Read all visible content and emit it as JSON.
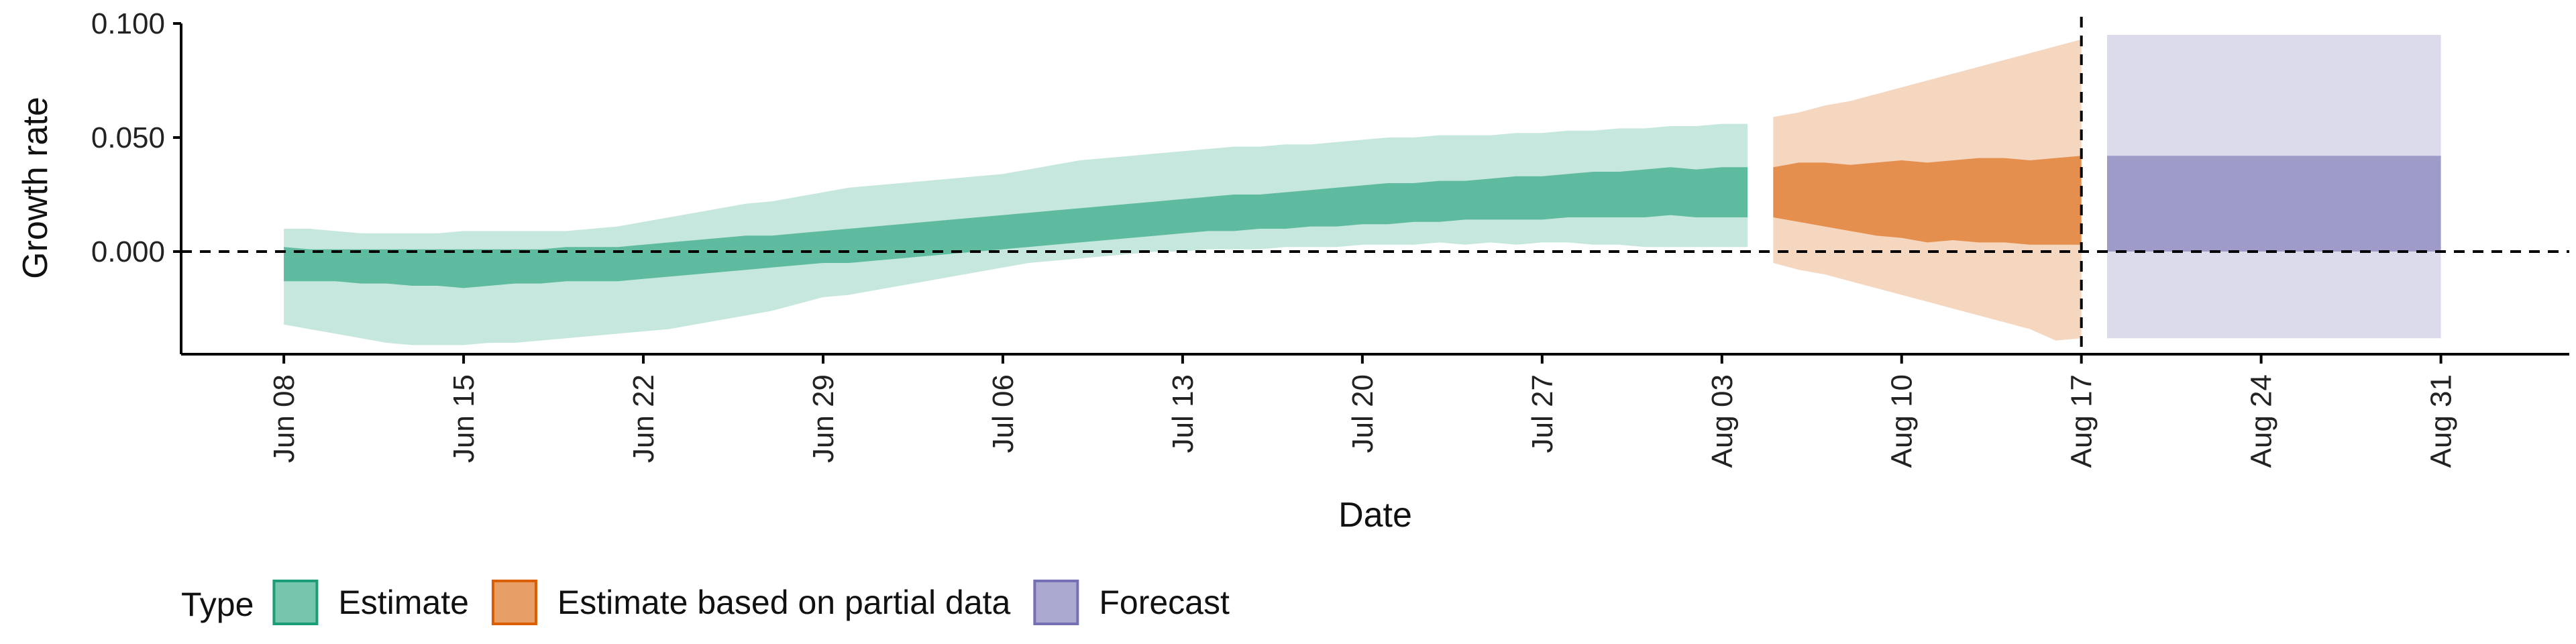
{
  "chart_data": {
    "type": "area",
    "xlabel": "Date",
    "ylabel": "Growth rate",
    "ylim": [
      -0.045,
      0.1
    ],
    "y_ticks": [
      "0.000",
      "0.050",
      "0.100"
    ],
    "y_tick_values": [
      0.0,
      0.05,
      0.1
    ],
    "x_ticks": [
      "Jun 08",
      "Jun 15",
      "Jun 22",
      "Jun 29",
      "Jul 06",
      "Jul 13",
      "Jul 20",
      "Jul 27",
      "Aug 03",
      "Aug 10",
      "Aug 17",
      "Aug 24",
      "Aug 31"
    ],
    "x_tick_dates": [
      "2020-06-08",
      "2020-06-15",
      "2020-06-22",
      "2020-06-29",
      "2020-07-06",
      "2020-07-13",
      "2020-07-20",
      "2020-07-27",
      "2020-08-03",
      "2020-08-10",
      "2020-08-17",
      "2020-08-24",
      "2020-08-31"
    ],
    "xlim": [
      "2020-06-04",
      "2020-09-05"
    ],
    "hline": 0,
    "vline": "2020-08-17",
    "grid": false,
    "legend": {
      "title": "Type",
      "position": "bottom-left",
      "entries": [
        {
          "label": "Estimate",
          "color": "#1b9e77"
        },
        {
          "label": "Estimate based on partial data",
          "color": "#d95f02"
        },
        {
          "label": "Forecast",
          "color": "#7570b3"
        }
      ]
    },
    "series": [
      {
        "name": "Estimate",
        "color": "#1b9e77",
        "x": [
          "2020-06-08",
          "2020-06-09",
          "2020-06-10",
          "2020-06-11",
          "2020-06-12",
          "2020-06-13",
          "2020-06-14",
          "2020-06-15",
          "2020-06-16",
          "2020-06-17",
          "2020-06-18",
          "2020-06-19",
          "2020-06-20",
          "2020-06-21",
          "2020-06-22",
          "2020-06-23",
          "2020-06-24",
          "2020-06-25",
          "2020-06-26",
          "2020-06-27",
          "2020-06-28",
          "2020-06-29",
          "2020-06-30",
          "2020-07-01",
          "2020-07-02",
          "2020-07-03",
          "2020-07-04",
          "2020-07-05",
          "2020-07-06",
          "2020-07-07",
          "2020-07-08",
          "2020-07-09",
          "2020-07-10",
          "2020-07-11",
          "2020-07-12",
          "2020-07-13",
          "2020-07-14",
          "2020-07-15",
          "2020-07-16",
          "2020-07-17",
          "2020-07-18",
          "2020-07-19",
          "2020-07-20",
          "2020-07-21",
          "2020-07-22",
          "2020-07-23",
          "2020-07-24",
          "2020-07-25",
          "2020-07-26",
          "2020-07-27",
          "2020-07-28",
          "2020-07-29",
          "2020-07-30",
          "2020-07-31",
          "2020-08-01",
          "2020-08-02",
          "2020-08-03",
          "2020-08-04"
        ],
        "lower_90": [
          -0.032,
          -0.034,
          -0.036,
          -0.038,
          -0.04,
          -0.041,
          -0.041,
          -0.041,
          -0.04,
          -0.04,
          -0.039,
          -0.038,
          -0.037,
          -0.036,
          -0.035,
          -0.034,
          -0.032,
          -0.03,
          -0.028,
          -0.026,
          -0.023,
          -0.02,
          -0.019,
          -0.017,
          -0.015,
          -0.013,
          -0.011,
          -0.009,
          -0.007,
          -0.005,
          -0.004,
          -0.003,
          -0.002,
          -0.001,
          0.0,
          0.0,
          0.001,
          0.001,
          0.001,
          0.002,
          0.002,
          0.002,
          0.003,
          0.003,
          0.003,
          0.004,
          0.003,
          0.004,
          0.003,
          0.004,
          0.004,
          0.003,
          0.003,
          0.002,
          0.002,
          0.002,
          0.002,
          0.002
        ],
        "lower_50": [
          -0.013,
          -0.013,
          -0.013,
          -0.014,
          -0.014,
          -0.015,
          -0.015,
          -0.016,
          -0.015,
          -0.014,
          -0.014,
          -0.013,
          -0.013,
          -0.013,
          -0.012,
          -0.011,
          -0.01,
          -0.009,
          -0.008,
          -0.007,
          -0.006,
          -0.005,
          -0.005,
          -0.004,
          -0.003,
          -0.002,
          -0.001,
          0.0,
          0.001,
          0.002,
          0.003,
          0.004,
          0.005,
          0.006,
          0.007,
          0.008,
          0.009,
          0.009,
          0.01,
          0.01,
          0.011,
          0.011,
          0.012,
          0.012,
          0.013,
          0.013,
          0.014,
          0.014,
          0.014,
          0.014,
          0.015,
          0.015,
          0.015,
          0.015,
          0.016,
          0.015,
          0.015,
          0.015
        ],
        "upper_50": [
          0.002,
          0.001,
          0.001,
          0.001,
          0.001,
          0.001,
          0.001,
          0.001,
          0.001,
          0.001,
          0.001,
          0.002,
          0.002,
          0.002,
          0.003,
          0.004,
          0.005,
          0.006,
          0.007,
          0.007,
          0.008,
          0.009,
          0.01,
          0.011,
          0.012,
          0.013,
          0.014,
          0.015,
          0.016,
          0.017,
          0.018,
          0.019,
          0.02,
          0.021,
          0.022,
          0.023,
          0.024,
          0.025,
          0.025,
          0.026,
          0.027,
          0.028,
          0.029,
          0.03,
          0.03,
          0.031,
          0.031,
          0.032,
          0.033,
          0.033,
          0.034,
          0.035,
          0.035,
          0.036,
          0.037,
          0.036,
          0.037,
          0.037
        ],
        "upper_90": [
          0.01,
          0.01,
          0.009,
          0.008,
          0.008,
          0.008,
          0.008,
          0.009,
          0.009,
          0.009,
          0.009,
          0.009,
          0.01,
          0.011,
          0.013,
          0.015,
          0.017,
          0.019,
          0.021,
          0.022,
          0.024,
          0.026,
          0.028,
          0.029,
          0.03,
          0.031,
          0.032,
          0.033,
          0.034,
          0.036,
          0.038,
          0.04,
          0.041,
          0.042,
          0.043,
          0.044,
          0.045,
          0.046,
          0.046,
          0.047,
          0.047,
          0.048,
          0.049,
          0.05,
          0.05,
          0.051,
          0.051,
          0.051,
          0.052,
          0.052,
          0.053,
          0.053,
          0.054,
          0.054,
          0.055,
          0.055,
          0.056,
          0.056
        ]
      },
      {
        "name": "Estimate based on partial data",
        "color": "#d95f02",
        "x": [
          "2020-08-05",
          "2020-08-06",
          "2020-08-07",
          "2020-08-08",
          "2020-08-09",
          "2020-08-10",
          "2020-08-11",
          "2020-08-12",
          "2020-08-13",
          "2020-08-14",
          "2020-08-15",
          "2020-08-16",
          "2020-08-17"
        ],
        "lower_90": [
          -0.005,
          -0.008,
          -0.01,
          -0.013,
          -0.016,
          -0.019,
          -0.022,
          -0.025,
          -0.028,
          -0.031,
          -0.034,
          -0.039,
          -0.038
        ],
        "lower_50": [
          0.015,
          0.013,
          0.011,
          0.009,
          0.007,
          0.006,
          0.004,
          0.005,
          0.004,
          0.004,
          0.003,
          0.003,
          0.003
        ],
        "upper_50": [
          0.037,
          0.039,
          0.039,
          0.038,
          0.039,
          0.04,
          0.039,
          0.04,
          0.041,
          0.041,
          0.04,
          0.041,
          0.042
        ],
        "upper_90": [
          0.059,
          0.061,
          0.064,
          0.066,
          0.069,
          0.072,
          0.075,
          0.078,
          0.081,
          0.084,
          0.087,
          0.09,
          0.093
        ]
      },
      {
        "name": "Forecast",
        "color": "#7570b3",
        "x": [
          "2020-08-18",
          "2020-08-31"
        ],
        "lower_90": [
          -0.038,
          -0.038
        ],
        "lower_50": [
          0.0,
          0.0
        ],
        "upper_50": [
          0.042,
          0.042
        ],
        "upper_90": [
          0.095,
          0.095
        ]
      }
    ]
  }
}
